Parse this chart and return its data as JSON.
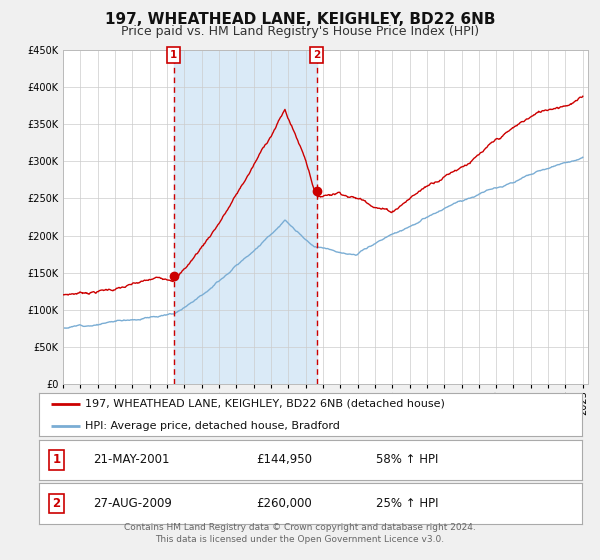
{
  "title": "197, WHEATHEAD LANE, KEIGHLEY, BD22 6NB",
  "subtitle": "Price paid vs. HM Land Registry's House Price Index (HPI)",
  "ylim": [
    0,
    450000
  ],
  "yticks": [
    0,
    50000,
    100000,
    150000,
    200000,
    250000,
    300000,
    350000,
    400000,
    450000
  ],
  "xlim_start": 1995.0,
  "xlim_end": 2025.3,
  "background_color": "#f0f0f0",
  "plot_bg_color": "#ffffff",
  "grid_color": "#cccccc",
  "shaded_region_color": "#daeaf7",
  "red_line_color": "#cc0000",
  "blue_line_color": "#7aadd4",
  "dashed_line_color": "#cc0000",
  "point1_x": 2001.385,
  "point1_y": 144950,
  "point1_label": "1",
  "point2_x": 2009.654,
  "point2_y": 260000,
  "point2_label": "2",
  "legend_red_label": "197, WHEATHEAD LANE, KEIGHLEY, BD22 6NB (detached house)",
  "legend_blue_label": "HPI: Average price, detached house, Bradford",
  "table_row1": [
    "1",
    "21-MAY-2001",
    "£144,950",
    "58% ↑ HPI"
  ],
  "table_row2": [
    "2",
    "27-AUG-2009",
    "£260,000",
    "25% ↑ HPI"
  ],
  "footer_line1": "Contains HM Land Registry data © Crown copyright and database right 2024.",
  "footer_line2": "This data is licensed under the Open Government Licence v3.0.",
  "title_fontsize": 11,
  "subtitle_fontsize": 9,
  "tick_fontsize": 7,
  "legend_fontsize": 8,
  "table_fontsize": 8.5,
  "footer_fontsize": 6.5
}
